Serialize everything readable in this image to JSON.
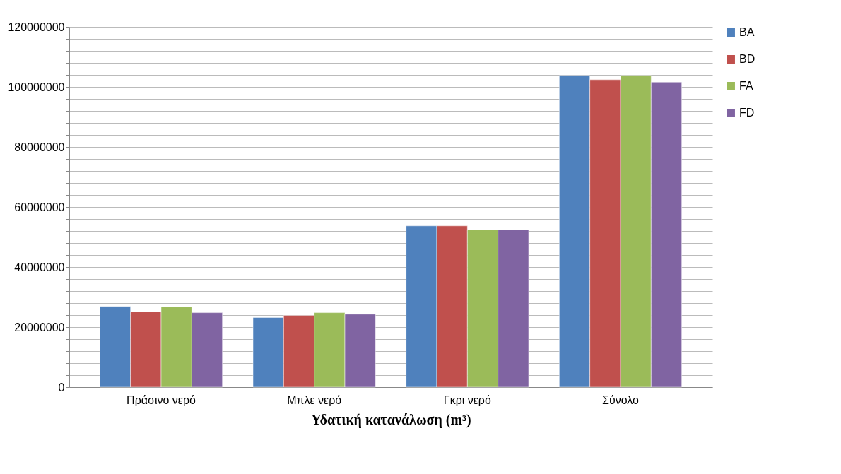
{
  "chart_data": {
    "type": "bar",
    "xlabel": "Υδατική κατανάλωση (m³)",
    "categories": [
      "Πράσινο νερό",
      "Μπλε νερό",
      "Γκρι νερό",
      "Σύνολο"
    ],
    "series": [
      {
        "name": "BA",
        "color": "#4f81bd",
        "values": [
          26900000,
          23200000,
          53700000,
          103800000
        ]
      },
      {
        "name": "BD",
        "color": "#c0504d",
        "values": [
          25100000,
          23900000,
          53700000,
          102400000
        ]
      },
      {
        "name": "FA",
        "color": "#9bbb59",
        "values": [
          26700000,
          24800000,
          52400000,
          103800000
        ]
      },
      {
        "name": "FD",
        "color": "#8064a2",
        "values": [
          24800000,
          24300000,
          52400000,
          101600000
        ]
      }
    ],
    "ylim": [
      0,
      120000000
    ],
    "yticks": [
      0,
      {
        "value": 4000000,
        "label": null
      },
      {
        "value": 8000000,
        "label": null
      },
      {
        "value": 12000000,
        "label": null
      },
      {
        "value": 16000000,
        "label": null
      },
      20000000,
      {
        "value": 24000000,
        "label": null
      },
      {
        "value": 28000000,
        "label": null
      },
      {
        "value": 32000000,
        "label": null
      },
      {
        "value": 36000000,
        "label": null
      },
      40000000,
      {
        "value": 44000000,
        "label": null
      },
      {
        "value": 48000000,
        "label": null
      },
      {
        "value": 52000000,
        "label": null
      },
      {
        "value": 56000000,
        "label": null
      },
      60000000,
      {
        "value": 64000000,
        "label": null
      },
      {
        "value": 68000000,
        "label": null
      },
      {
        "value": 72000000,
        "label": null
      },
      {
        "value": 76000000,
        "label": null
      },
      80000000,
      {
        "value": 84000000,
        "label": null
      },
      {
        "value": 88000000,
        "label": null
      },
      {
        "value": 92000000,
        "label": null
      },
      {
        "value": 96000000,
        "label": null
      },
      100000000,
      {
        "value": 104000000,
        "label": null
      },
      {
        "value": 108000000,
        "label": null
      },
      {
        "value": 112000000,
        "label": null
      },
      {
        "value": 116000000,
        "label": null
      },
      120000000
    ],
    "grid": "y",
    "legend": "right"
  }
}
